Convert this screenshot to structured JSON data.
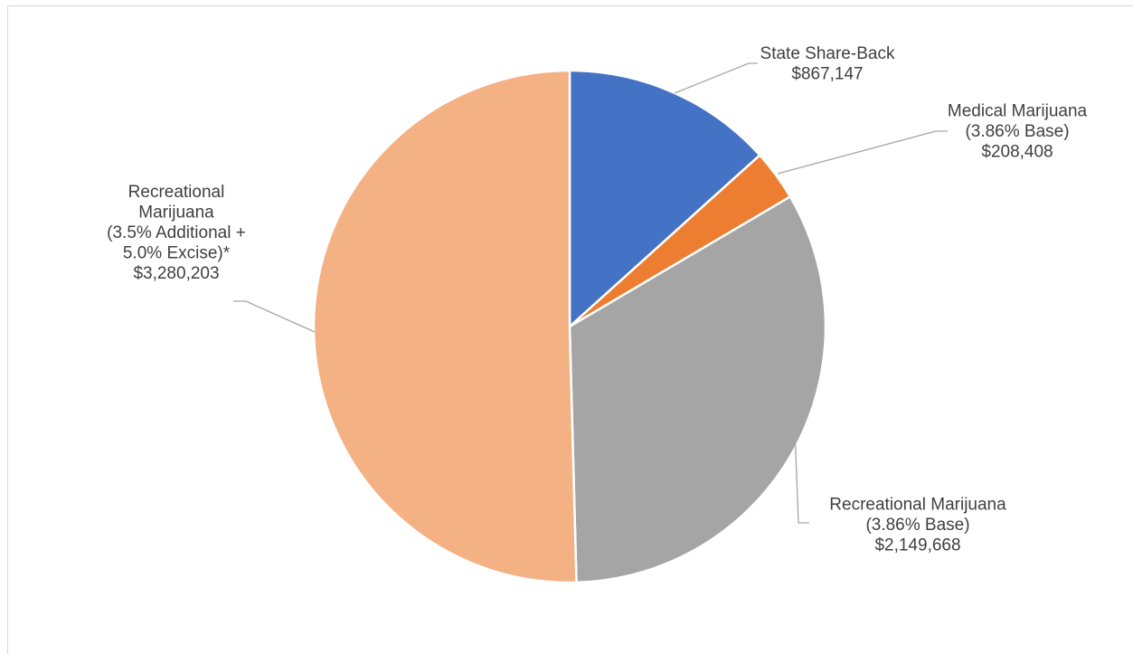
{
  "chart_data": {
    "type": "pie",
    "title": "",
    "slices": [
      {
        "name_lines": [
          "State Share-Back"
        ],
        "value": 867147,
        "value_label": "$867,147",
        "color": "#4472C4"
      },
      {
        "name_lines": [
          "Medical Marijuana",
          "(3.86% Base)"
        ],
        "value": 208408,
        "value_label": "$208,408",
        "color": "#ED7D31"
      },
      {
        "name_lines": [
          "Recreational Marijuana",
          "(3.86% Base)"
        ],
        "value": 2149668,
        "value_label": "$2,149,668",
        "color": "#A5A5A5"
      },
      {
        "name_lines": [
          "Recreational",
          "Marijuana",
          "(3.5% Additional +",
          "5.0% Excise)*"
        ],
        "value": 3280203,
        "value_label": "$3,280,203",
        "color": "#F4B183"
      }
    ],
    "start_angle": "12 o'clock",
    "direction": "clockwise",
    "legend": "none",
    "data_labels": "outside with leader lines"
  }
}
